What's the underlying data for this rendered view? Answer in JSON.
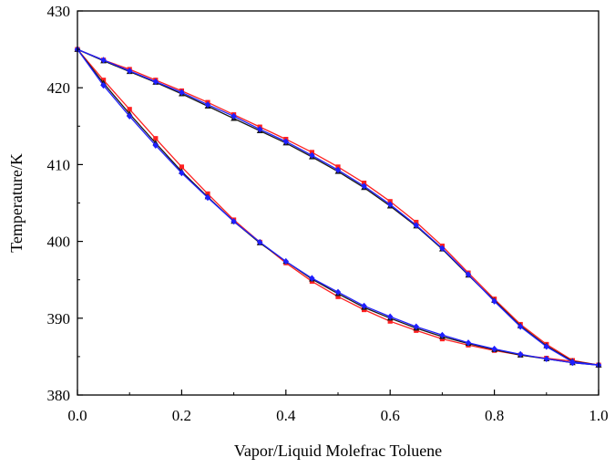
{
  "chart_data": {
    "type": "line",
    "xlabel": "Vapor/Liquid Molefrac Toluene",
    "ylabel": "Temperature/K",
    "xlim": [
      0.0,
      1.0
    ],
    "ylim": [
      380,
      430
    ],
    "x_ticks": [
      0.0,
      0.2,
      0.4,
      0.6,
      0.8,
      1.0
    ],
    "x_tick_labels": [
      "0.0",
      "0.2",
      "0.4",
      "0.6",
      "0.8",
      "1.0"
    ],
    "y_ticks": [
      380,
      390,
      400,
      410,
      420,
      430
    ],
    "y_tick_labels": [
      "380",
      "390",
      "400",
      "410",
      "420",
      "430"
    ],
    "grid": false,
    "series": [
      {
        "color": "#ff2020",
        "marker": "square",
        "curve": "dew",
        "x": [
          0.0,
          0.05,
          0.1,
          0.15,
          0.2,
          0.25,
          0.3,
          0.35,
          0.4,
          0.45,
          0.5,
          0.55,
          0.6,
          0.65,
          0.7,
          0.75,
          0.8,
          0.85,
          0.9,
          0.95,
          1.0
        ],
        "y": [
          425.0,
          423.6,
          422.4,
          421.0,
          419.6,
          418.1,
          416.5,
          414.9,
          413.3,
          411.6,
          409.7,
          407.6,
          405.2,
          402.5,
          399.4,
          395.9,
          392.5,
          389.2,
          386.6,
          384.5,
          383.9
        ]
      },
      {
        "color": "#ff2020",
        "marker": "square",
        "curve": "bubble",
        "x": [
          0.0,
          0.05,
          0.1,
          0.15,
          0.2,
          0.25,
          0.3,
          0.35,
          0.4,
          0.45,
          0.5,
          0.55,
          0.6,
          0.65,
          0.7,
          0.75,
          0.8,
          0.85,
          0.9,
          0.95,
          1.0
        ],
        "y": [
          425.0,
          421.0,
          417.2,
          413.4,
          409.7,
          406.2,
          402.8,
          399.9,
          397.2,
          394.8,
          392.8,
          391.1,
          389.6,
          388.4,
          387.3,
          386.5,
          385.8,
          385.2,
          384.8,
          384.4,
          383.9
        ]
      },
      {
        "color": "#1a1a1a",
        "marker": "triangle",
        "curve": "dew",
        "x": [
          0.0,
          0.05,
          0.1,
          0.15,
          0.2,
          0.25,
          0.3,
          0.35,
          0.4,
          0.45,
          0.5,
          0.55,
          0.6,
          0.65,
          0.7,
          0.75,
          0.8,
          0.85,
          0.9,
          0.95,
          1.0
        ],
        "y": [
          425.0,
          423.5,
          422.1,
          420.7,
          419.2,
          417.6,
          416.0,
          414.4,
          412.8,
          411.0,
          409.1,
          407.0,
          404.6,
          402.0,
          399.0,
          395.6,
          392.3,
          389.0,
          386.4,
          384.4,
          383.9
        ]
      },
      {
        "color": "#1a1a1a",
        "marker": "triangle",
        "curve": "bubble",
        "x": [
          0.0,
          0.05,
          0.1,
          0.15,
          0.2,
          0.25,
          0.3,
          0.35,
          0.4,
          0.45,
          0.5,
          0.55,
          0.6,
          0.65,
          0.7,
          0.75,
          0.8,
          0.85,
          0.9,
          0.95,
          1.0
        ],
        "y": [
          425.0,
          420.6,
          416.6,
          412.8,
          409.1,
          405.8,
          402.6,
          399.8,
          397.4,
          395.1,
          393.2,
          391.4,
          390.0,
          388.7,
          387.6,
          386.7,
          385.9,
          385.2,
          384.7,
          384.2,
          383.9
        ]
      },
      {
        "color": "#1f1fff",
        "marker": "diamond",
        "curve": "dew",
        "x": [
          0.0,
          0.05,
          0.1,
          0.15,
          0.2,
          0.25,
          0.3,
          0.35,
          0.4,
          0.45,
          0.5,
          0.55,
          0.6,
          0.65,
          0.7,
          0.75,
          0.8,
          0.85,
          0.9,
          0.95,
          1.0
        ],
        "y": [
          425.0,
          423.6,
          422.2,
          420.8,
          419.4,
          417.8,
          416.3,
          414.6,
          413.0,
          411.2,
          409.3,
          407.2,
          404.8,
          402.1,
          399.1,
          395.7,
          392.2,
          388.9,
          386.3,
          384.3,
          383.9
        ]
      },
      {
        "color": "#1f1fff",
        "marker": "diamond",
        "curve": "bubble",
        "x": [
          0.0,
          0.05,
          0.1,
          0.15,
          0.2,
          0.25,
          0.3,
          0.35,
          0.4,
          0.45,
          0.5,
          0.55,
          0.6,
          0.65,
          0.7,
          0.75,
          0.8,
          0.85,
          0.9,
          0.95,
          1.0
        ],
        "y": [
          425.0,
          420.3,
          416.3,
          412.5,
          408.9,
          405.7,
          402.6,
          399.9,
          397.4,
          395.2,
          393.4,
          391.6,
          390.2,
          388.9,
          387.8,
          386.8,
          386.0,
          385.3,
          384.7,
          384.2,
          383.9
        ]
      }
    ]
  }
}
